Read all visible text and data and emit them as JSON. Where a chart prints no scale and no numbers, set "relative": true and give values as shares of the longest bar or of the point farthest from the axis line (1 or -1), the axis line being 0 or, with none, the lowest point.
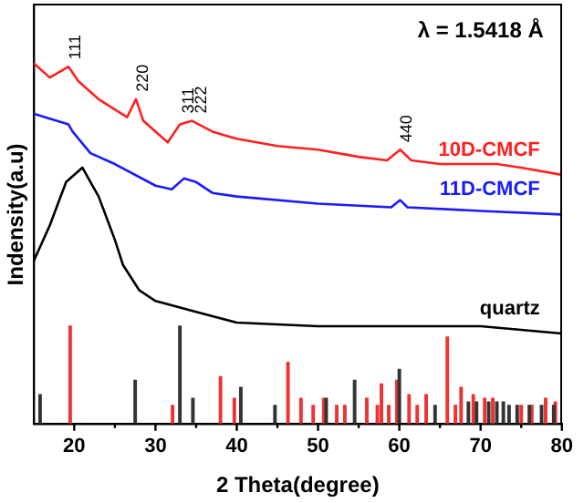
{
  "chart_data": {
    "type": "line",
    "relative": true,
    "xlabel": "2 Theta(degree)",
    "ylabel": "Indensity(a.u)",
    "xlim": [
      15,
      80
    ],
    "xticks": [
      20,
      {
        "value": 25,
        "label": null
      },
      30,
      {
        "value": 35,
        "label": null
      },
      40,
      {
        "value": 45,
        "label": null
      },
      50,
      {
        "value": 55,
        "label": null
      },
      60,
      {
        "value": 65,
        "label": null
      },
      70,
      {
        "value": 75,
        "label": null
      },
      80
    ],
    "grid": false,
    "legend": false,
    "tick_labels": "x",
    "annotations": [
      "λ = 1.5418 Å",
      {
        "text": "111",
        "x": 19.3,
        "y": 0.99
      },
      {
        "text": "220",
        "x": 27.6,
        "y": 0.9
      },
      {
        "text": "311",
        "x": 33.2,
        "y": 0.84
      },
      {
        "text": "222",
        "x": 34.8,
        "y": 0.84
      },
      {
        "text": "440",
        "x": 60.1,
        "y": 0.76
      }
    ],
    "series": [
      {
        "name": "10D-CMCF",
        "color": "#ff2020",
        "x": [
          15,
          17,
          19.3,
          20.5,
          23,
          26.5,
          27.6,
          28.5,
          31.5,
          33,
          34.5,
          37,
          40,
          45,
          50,
          55,
          58.5,
          60.1,
          61.5,
          65,
          70,
          72,
          75,
          80
        ],
        "values": [
          1.0,
          0.96,
          0.99,
          0.95,
          0.9,
          0.85,
          0.9,
          0.84,
          0.78,
          0.83,
          0.84,
          0.81,
          0.79,
          0.77,
          0.76,
          0.74,
          0.73,
          0.76,
          0.73,
          0.72,
          0.72,
          0.72,
          0.71,
          0.69
        ]
      },
      {
        "name": "11D-CMCF",
        "color": "#1a1aff",
        "x": [
          15,
          19.3,
          19.8,
          22,
          25,
          30,
          32,
          33.5,
          35,
          37,
          40,
          50,
          59,
          60.1,
          61,
          70,
          80
        ],
        "values": [
          0.86,
          0.83,
          0.81,
          0.75,
          0.72,
          0.66,
          0.65,
          0.68,
          0.67,
          0.64,
          0.63,
          0.61,
          0.6,
          0.62,
          0.6,
          0.59,
          0.58
        ]
      },
      {
        "name": "quartz",
        "color": "#000000",
        "x": [
          15,
          16,
          17,
          19,
          21,
          23,
          25,
          26,
          28,
          30,
          35,
          40,
          50,
          60,
          70,
          80
        ],
        "values": [
          0.45,
          0.5,
          0.55,
          0.67,
          0.71,
          0.63,
          0.51,
          0.44,
          0.37,
          0.34,
          0.31,
          0.28,
          0.27,
          0.27,
          0.27,
          0.25
        ]
      },
      {
        "type": "bar",
        "color": "#333333",
        "x": [
          15.8,
          27.5,
          33,
          34.6,
          40.5,
          44.7,
          51,
          54.5,
          60,
          64.4,
          68.5,
          69.5,
          71,
          72,
          72.8,
          73.5,
          74.5,
          76,
          77.5,
          79
        ],
        "values": [
          0.08,
          0.12,
          0.27,
          0.07,
          0.1,
          0.05,
          0.07,
          0.12,
          0.15,
          0.05,
          0.06,
          0.06,
          0.06,
          0.06,
          0.06,
          0.05,
          0.05,
          0.05,
          0.05,
          0.05
        ]
      },
      {
        "type": "bar",
        "color": "#ee3333",
        "x": [
          19.5,
          32.1,
          38,
          39.7,
          46.3,
          47.9,
          49.4,
          50.7,
          52.3,
          53.3,
          56,
          57.3,
          57.8,
          58.7,
          59.7,
          61.2,
          62.2,
          63.3,
          65.9,
          66.9,
          67.6,
          68.3,
          69.1,
          70.5,
          71.5,
          75,
          76.3,
          78,
          79.2
        ],
        "values": [
          0.27,
          0.05,
          0.13,
          0.07,
          0.17,
          0.07,
          0.05,
          0.07,
          0.05,
          0.05,
          0.07,
          0.05,
          0.11,
          0.05,
          0.12,
          0.08,
          0.05,
          0.08,
          0.24,
          0.05,
          0.1,
          null,
          0.08,
          0.07,
          0.07,
          0.05,
          0.05,
          0.07,
          0.06
        ]
      }
    ]
  }
}
